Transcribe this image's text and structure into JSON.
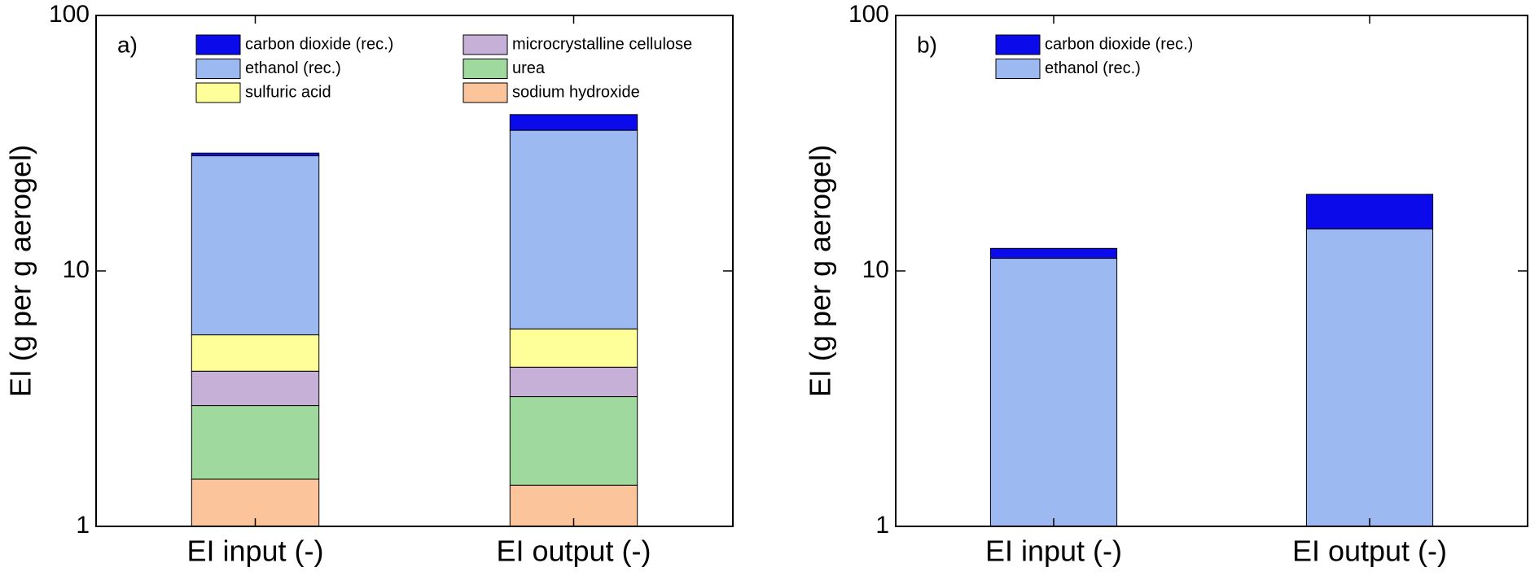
{
  "chart_data": [
    {
      "type": "bar",
      "stacked": true,
      "log_scale": true,
      "title": "a)",
      "ylabel": "EI (g per g aerogel)",
      "categories": [
        "EI input (-)",
        "EI output (-)"
      ],
      "series": [
        {
          "name": "sodium hydroxide",
          "color": "#fbc49b",
          "values": [
            1.53,
            1.45
          ]
        },
        {
          "name": "urea",
          "color": "#9fd99d",
          "values": [
            1.44,
            1.77
          ]
        },
        {
          "name": "microcrystalline cellulose",
          "color": "#c6b0d8",
          "values": [
            1.08,
            0.98
          ]
        },
        {
          "name": "sulfuric acid",
          "color": "#ffff99",
          "values": [
            1.57,
            1.73
          ]
        },
        {
          "name": "ethanol  (rec.)",
          "color": "#9db9f2",
          "values": [
            22.6,
            29.6
          ]
        },
        {
          "name": "carbon dioxide (rec.)",
          "color": "#0a0aeb",
          "values": [
            0.7,
            5.4
          ]
        }
      ],
      "ylim": [
        1,
        100
      ],
      "yticks": [
        1,
        10,
        100
      ]
    },
    {
      "type": "bar",
      "stacked": true,
      "log_scale": true,
      "title": "b)",
      "ylabel": "EI (g per g aerogel)",
      "categories": [
        "EI input (-)",
        "EI output (-)"
      ],
      "series": [
        {
          "name": "ethanol  (rec.)",
          "color": "#9db9f2",
          "values": [
            11.2,
            14.6
          ]
        },
        {
          "name": "carbon dioxide (rec.)",
          "color": "#0a0aeb",
          "values": [
            1.05,
            5.35
          ]
        }
      ],
      "ylim": [
        1,
        100
      ],
      "yticks": [
        1,
        10,
        100
      ]
    }
  ]
}
